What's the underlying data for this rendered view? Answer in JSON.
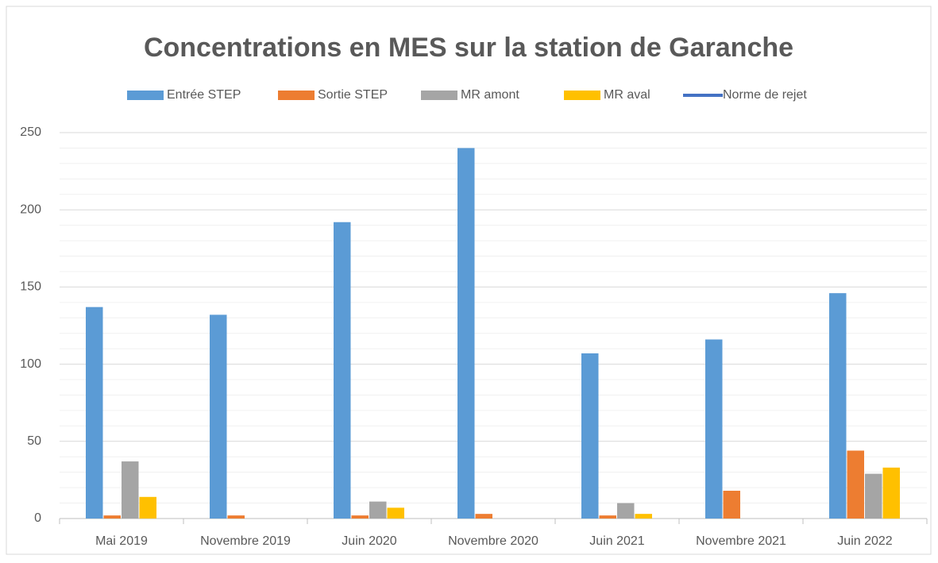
{
  "chart_data": {
    "type": "bar",
    "title": "Concentrations en MES sur la station de Garanche",
    "categories": [
      "Mai 2019",
      "Novembre 2019",
      "Juin 2020",
      "Novembre 2020",
      "Juin 2021",
      "Novembre 2021",
      "Juin 2022"
    ],
    "series": [
      {
        "name": "Entrée STEP",
        "color": "#5b9bd5",
        "values": [
          137,
          132,
          192,
          240,
          107,
          116,
          146
        ]
      },
      {
        "name": "Sortie STEP",
        "color": "#ed7d31",
        "values": [
          2,
          2,
          2,
          3,
          2,
          18,
          44
        ]
      },
      {
        "name": "MR amont",
        "color": "#a5a5a5",
        "values": [
          37,
          null,
          11,
          null,
          10,
          null,
          29
        ]
      },
      {
        "name": "MR aval",
        "color": "#ffc000",
        "values": [
          14,
          null,
          7,
          null,
          3,
          null,
          33
        ]
      },
      {
        "name": "Norme de rejet",
        "color": "#4472c4",
        "type": "line",
        "values": [
          null,
          null,
          null,
          null,
          null,
          null,
          null
        ]
      }
    ],
    "ylim": [
      0,
      250
    ],
    "yticks": [
      0,
      50,
      100,
      150,
      200,
      250
    ],
    "yminorticks": [
      10,
      20,
      30,
      40,
      60,
      70,
      80,
      90,
      110,
      120,
      130,
      140,
      160,
      170,
      180,
      190,
      210,
      220,
      230,
      240
    ],
    "grid": true,
    "legend": "top"
  }
}
